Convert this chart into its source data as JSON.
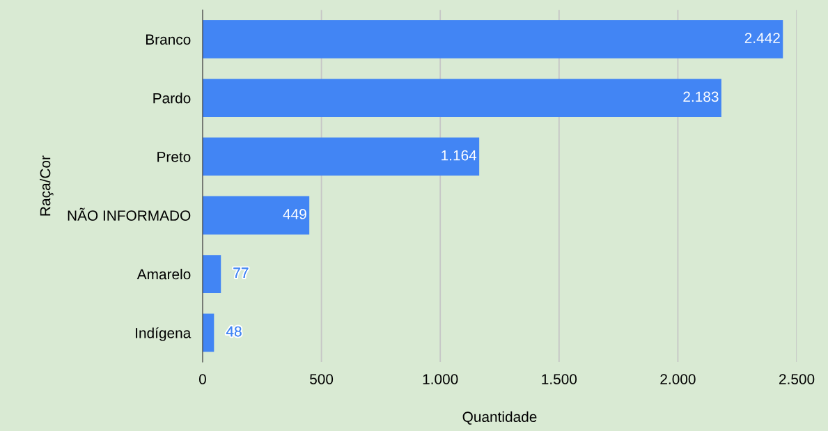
{
  "chart_data": {
    "type": "bar",
    "orientation": "horizontal",
    "xlabel": "Quantidade",
    "ylabel": "Raça/Cor",
    "categories": [
      "Branco",
      "Pardo",
      "Preto",
      "NÃO INFORMADO",
      "Amarelo",
      "Indígena"
    ],
    "values": [
      2442,
      2183,
      1164,
      449,
      77,
      48
    ],
    "value_labels": [
      "2.442",
      "2.183",
      "1.164",
      "449",
      "77",
      "48"
    ],
    "color": "#4285f4",
    "xlim": [
      0,
      2500
    ],
    "xticks": [
      0,
      500,
      {
        "value": 1000,
        "label": "1.000"
      },
      {
        "value": 1500,
        "label": "1.500"
      },
      {
        "value": 2000,
        "label": "2.000"
      },
      {
        "value": 2500,
        "label": "2.500"
      }
    ],
    "grid": "x"
  }
}
